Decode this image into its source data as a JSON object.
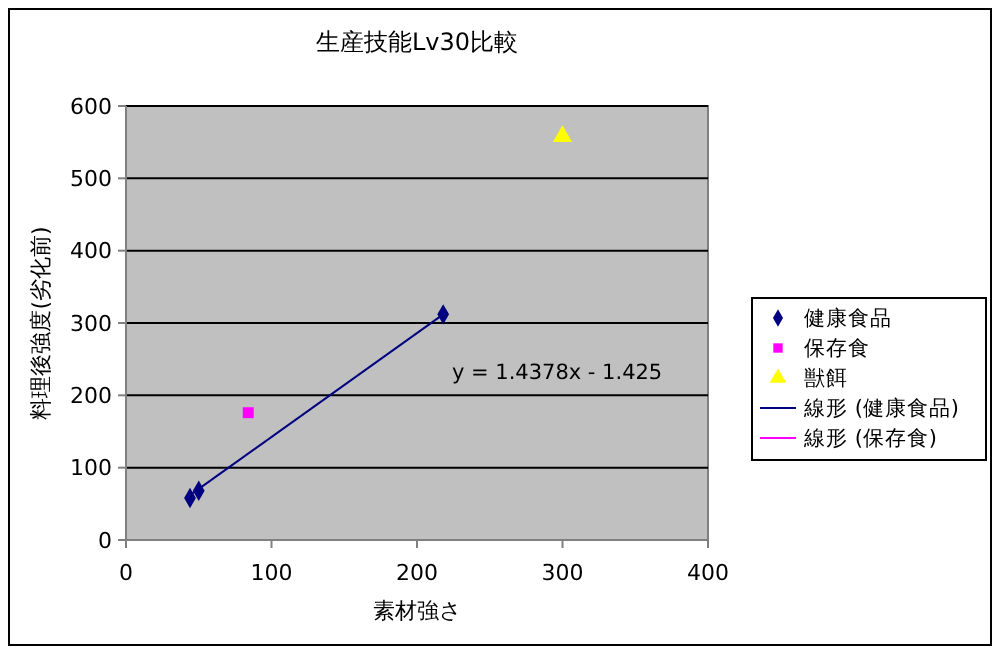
{
  "chart_data": {
    "type": "scatter",
    "title": "生産技能Lv30比較",
    "xlabel": "素材強さ",
    "ylabel": "料理後強度(劣化前)",
    "xlim": [
      0,
      400
    ],
    "xticks": [
      0,
      100,
      200,
      300,
      400
    ],
    "ylim": [
      0,
      600
    ],
    "yticks": [
      0,
      100,
      200,
      300,
      400,
      500,
      600
    ],
    "grid": "y",
    "legend": "right",
    "annotations": [
      "y = 1.4378x - 1.425"
    ],
    "series": [
      {
        "name": "健康食品",
        "color": "#000080",
        "marker": "diamond",
        "x": [
          44,
          50,
          218
        ],
        "values": [
          58,
          68,
          312
        ]
      },
      {
        "name": "保存食",
        "color": "#ff00ff",
        "marker": "square",
        "x": [
          84
        ],
        "values": [
          176
        ]
      },
      {
        "name": "獣餌",
        "color": "#ffff00",
        "marker": "triangle",
        "x": [
          300
        ],
        "values": [
          558
        ]
      },
      {
        "name": "線形 (健康食品)",
        "type": "line",
        "color": "#000080",
        "marker": "none",
        "x": [
          44,
          218
        ],
        "values": [
          62,
          312
        ]
      },
      {
        "name": "線形 (保存食)",
        "type": "line",
        "color": "#ff00ff",
        "marker": "none"
      }
    ]
  }
}
